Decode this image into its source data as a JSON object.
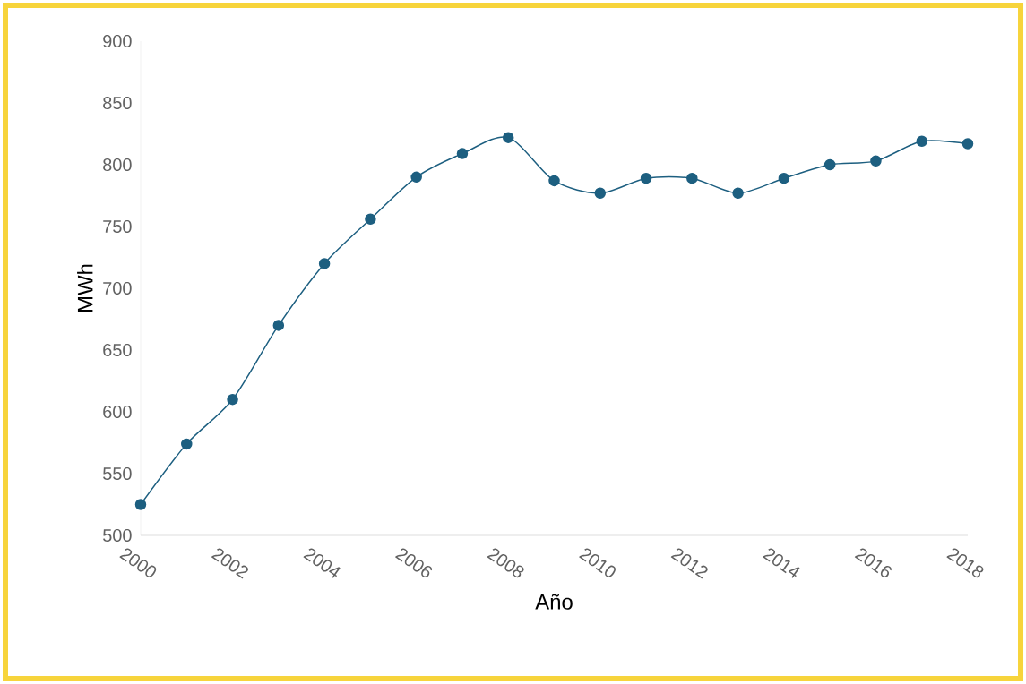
{
  "chart_data": {
    "type": "line",
    "xlabel": "Año",
    "ylabel": "MWh",
    "x": [
      2000,
      2001,
      2002,
      2003,
      2004,
      2005,
      2006,
      2007,
      2008,
      2009,
      2010,
      2011,
      2012,
      2013,
      2014,
      2015,
      2016,
      2017,
      2018
    ],
    "values": [
      525,
      574,
      610,
      670,
      720,
      756,
      790,
      809,
      822,
      787,
      777,
      789,
      789,
      777,
      789,
      800,
      803,
      819,
      817
    ],
    "color": "#1d5f80",
    "marker": "circle",
    "line_style": "solid",
    "xlim": [
      2000,
      2018
    ],
    "ylim": [
      500,
      900
    ],
    "xticks": [
      2000,
      2002,
      2004,
      2006,
      2008,
      2010,
      2012,
      2014,
      2016,
      2018
    ],
    "yticks": [
      500,
      550,
      600,
      650,
      700,
      750,
      800,
      850,
      900
    ]
  }
}
